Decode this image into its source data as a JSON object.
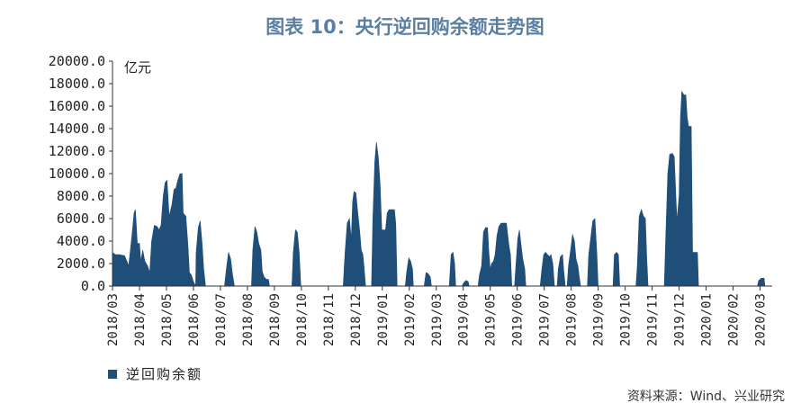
{
  "chart_data": {
    "type": "area",
    "title": "图表 10：央行逆回购余额走势图",
    "ylabel": "亿元",
    "ylim": [
      0,
      20000
    ],
    "yticks": [
      "0.0",
      "2000.0",
      "4000.0",
      "6000.0",
      "8000.0",
      "10000.0",
      "12000.0",
      "14000.0",
      "16000.0",
      "18000.0",
      "20000.0"
    ],
    "xlim": [
      0,
      24.45
    ],
    "categories": [
      "2018/03",
      "2018/04",
      "2018/05",
      "2018/06",
      "2018/07",
      "2018/08",
      "2018/09",
      "2018/10",
      "2018/11",
      "2018/12",
      "2019/01",
      "2019/02",
      "2019/03",
      "2019/04",
      "2019/05",
      "2019/06",
      "2019/07",
      "2019/08",
      "2019/09",
      "2019/10",
      "2019/11",
      "2019/12",
      "2020/01",
      "2020/02",
      "2020/03"
    ],
    "series": [
      {
        "name": "逆回购余额",
        "color": "#1f4e79",
        "points": [
          [
            0.0,
            3000
          ],
          [
            0.1,
            2800
          ],
          [
            0.25,
            2800
          ],
          [
            0.45,
            2700
          ],
          [
            0.6,
            1800
          ],
          [
            0.72,
            4500
          ],
          [
            0.8,
            6500
          ],
          [
            0.85,
            6800
          ],
          [
            0.92,
            3800
          ],
          [
            1.0,
            3800
          ],
          [
            1.05,
            2200
          ],
          [
            1.12,
            3200
          ],
          [
            1.2,
            2200
          ],
          [
            1.3,
            1800
          ],
          [
            1.38,
            1200
          ],
          [
            1.45,
            4000
          ],
          [
            1.55,
            5400
          ],
          [
            1.65,
            5300
          ],
          [
            1.72,
            5000
          ],
          [
            1.8,
            5400
          ],
          [
            1.88,
            8000
          ],
          [
            1.95,
            9200
          ],
          [
            2.02,
            9400
          ],
          [
            2.1,
            6200
          ],
          [
            2.2,
            7200
          ],
          [
            2.28,
            8600
          ],
          [
            2.35,
            8700
          ],
          [
            2.42,
            9400
          ],
          [
            2.5,
            10000
          ],
          [
            2.58,
            10000
          ],
          [
            2.62,
            6500
          ],
          [
            2.72,
            6200
          ],
          [
            2.8,
            3500
          ],
          [
            2.85,
            1200
          ],
          [
            2.92,
            1000
          ],
          [
            3.0,
            400
          ],
          [
            3.08,
            0
          ],
          [
            3.1,
            3000
          ],
          [
            3.18,
            5200
          ],
          [
            3.25,
            5800
          ],
          [
            3.32,
            3800
          ],
          [
            3.38,
            1500
          ],
          [
            3.45,
            0
          ],
          [
            4.15,
            0
          ],
          [
            4.22,
            1500
          ],
          [
            4.3,
            3000
          ],
          [
            4.38,
            2400
          ],
          [
            4.45,
            1000
          ],
          [
            4.52,
            0
          ],
          [
            5.15,
            0
          ],
          [
            5.2,
            3200
          ],
          [
            5.28,
            5300
          ],
          [
            5.35,
            4800
          ],
          [
            5.42,
            3800
          ],
          [
            5.5,
            3200
          ],
          [
            5.55,
            1300
          ],
          [
            5.62,
            800
          ],
          [
            5.7,
            600
          ],
          [
            5.78,
            600
          ],
          [
            5.82,
            0
          ],
          [
            6.65,
            0
          ],
          [
            6.7,
            3000
          ],
          [
            6.78,
            5000
          ],
          [
            6.85,
            4800
          ],
          [
            6.92,
            3000
          ],
          [
            6.98,
            0
          ],
          [
            8.55,
            0
          ],
          [
            8.62,
            3000
          ],
          [
            8.7,
            5600
          ],
          [
            8.78,
            6000
          ],
          [
            8.85,
            4200
          ],
          [
            8.9,
            7500
          ],
          [
            8.95,
            8400
          ],
          [
            9.02,
            8300
          ],
          [
            9.08,
            6800
          ],
          [
            9.15,
            5200
          ],
          [
            9.22,
            3200
          ],
          [
            9.28,
            2800
          ],
          [
            9.32,
            1800
          ],
          [
            9.38,
            0
          ],
          [
            9.6,
            0
          ],
          [
            9.65,
            6000
          ],
          [
            9.72,
            11000
          ],
          [
            9.78,
            12800
          ],
          [
            9.85,
            11500
          ],
          [
            9.92,
            9000
          ],
          [
            9.98,
            5000
          ],
          [
            10.05,
            5000
          ],
          [
            10.12,
            5000
          ],
          [
            10.18,
            6500
          ],
          [
            10.25,
            6800
          ],
          [
            10.35,
            6800
          ],
          [
            10.45,
            6800
          ],
          [
            10.5,
            5500
          ],
          [
            10.55,
            0
          ],
          [
            10.85,
            0
          ],
          [
            10.9,
            1200
          ],
          [
            10.98,
            2500
          ],
          [
            11.05,
            2200
          ],
          [
            11.12,
            1500
          ],
          [
            11.15,
            0
          ],
          [
            11.55,
            0
          ],
          [
            11.62,
            1200
          ],
          [
            11.7,
            1100
          ],
          [
            11.78,
            800
          ],
          [
            11.82,
            0
          ],
          [
            12.48,
            0
          ],
          [
            12.55,
            2800
          ],
          [
            12.62,
            3000
          ],
          [
            12.68,
            2000
          ],
          [
            12.72,
            0
          ],
          [
            12.95,
            0
          ],
          [
            13.02,
            300
          ],
          [
            13.1,
            500
          ],
          [
            13.18,
            400
          ],
          [
            13.22,
            0
          ],
          [
            13.55,
            0
          ],
          [
            13.6,
            1000
          ],
          [
            13.68,
            1800
          ],
          [
            13.75,
            4800
          ],
          [
            13.82,
            5200
          ],
          [
            13.9,
            5200
          ],
          [
            13.95,
            3000
          ],
          [
            14.0,
            1500
          ],
          [
            14.05,
            2000
          ],
          [
            14.12,
            2200
          ],
          [
            14.18,
            2800
          ],
          [
            14.25,
            4500
          ],
          [
            14.32,
            5300
          ],
          [
            14.4,
            5600
          ],
          [
            14.5,
            5600
          ],
          [
            14.6,
            5600
          ],
          [
            14.65,
            4500
          ],
          [
            14.7,
            3500
          ],
          [
            14.75,
            2800
          ],
          [
            14.8,
            0
          ],
          [
            14.9,
            0
          ],
          [
            14.95,
            1800
          ],
          [
            15.02,
            4200
          ],
          [
            15.08,
            5000
          ],
          [
            15.15,
            3500
          ],
          [
            15.2,
            2500
          ],
          [
            15.28,
            1500
          ],
          [
            15.32,
            0
          ],
          [
            15.85,
            0
          ],
          [
            15.9,
            1200
          ],
          [
            15.98,
            2800
          ],
          [
            16.05,
            3000
          ],
          [
            16.12,
            2800
          ],
          [
            16.2,
            2600
          ],
          [
            16.25,
            2800
          ],
          [
            16.32,
            2000
          ],
          [
            16.38,
            0
          ],
          [
            16.48,
            0
          ],
          [
            16.52,
            1500
          ],
          [
            16.6,
            2600
          ],
          [
            16.68,
            2800
          ],
          [
            16.72,
            1500
          ],
          [
            16.78,
            0
          ],
          [
            16.85,
            0
          ],
          [
            16.9,
            1800
          ],
          [
            16.98,
            3200
          ],
          [
            17.05,
            4600
          ],
          [
            17.12,
            4000
          ],
          [
            17.18,
            2400
          ],
          [
            17.25,
            1800
          ],
          [
            17.3,
            800
          ],
          [
            17.35,
            0
          ],
          [
            17.6,
            0
          ],
          [
            17.65,
            2800
          ],
          [
            17.72,
            4200
          ],
          [
            17.8,
            5800
          ],
          [
            17.88,
            6000
          ],
          [
            17.95,
            3000
          ],
          [
            18.0,
            0
          ],
          [
            18.55,
            0
          ],
          [
            18.6,
            2800
          ],
          [
            18.68,
            3000
          ],
          [
            18.75,
            2800
          ],
          [
            18.8,
            0
          ],
          [
            19.4,
            0
          ],
          [
            19.45,
            1800
          ],
          [
            19.52,
            6200
          ],
          [
            19.6,
            6800
          ],
          [
            19.68,
            6200
          ],
          [
            19.75,
            6000
          ],
          [
            19.8,
            2500
          ],
          [
            19.85,
            0
          ],
          [
            20.45,
            0
          ],
          [
            20.5,
            4000
          ],
          [
            20.58,
            10000
          ],
          [
            20.65,
            11700
          ],
          [
            20.75,
            11800
          ],
          [
            20.82,
            11500
          ],
          [
            20.88,
            8000
          ],
          [
            20.92,
            5800
          ],
          [
            21.0,
            8000
          ],
          [
            21.05,
            15000
          ],
          [
            21.1,
            17300
          ],
          [
            21.18,
            17000
          ],
          [
            21.25,
            17000
          ],
          [
            21.3,
            15000
          ],
          [
            21.35,
            14200
          ],
          [
            21.45,
            14200
          ],
          [
            21.5,
            3000
          ],
          [
            21.6,
            3000
          ],
          [
            21.68,
            3000
          ],
          [
            21.72,
            0
          ],
          [
            23.9,
            0
          ],
          [
            23.95,
            500
          ],
          [
            24.05,
            700
          ],
          [
            24.15,
            700
          ],
          [
            24.18,
            0
          ]
        ]
      }
    ],
    "legend": "bottom-left",
    "source": "资料来源：Wind、兴业研究"
  }
}
